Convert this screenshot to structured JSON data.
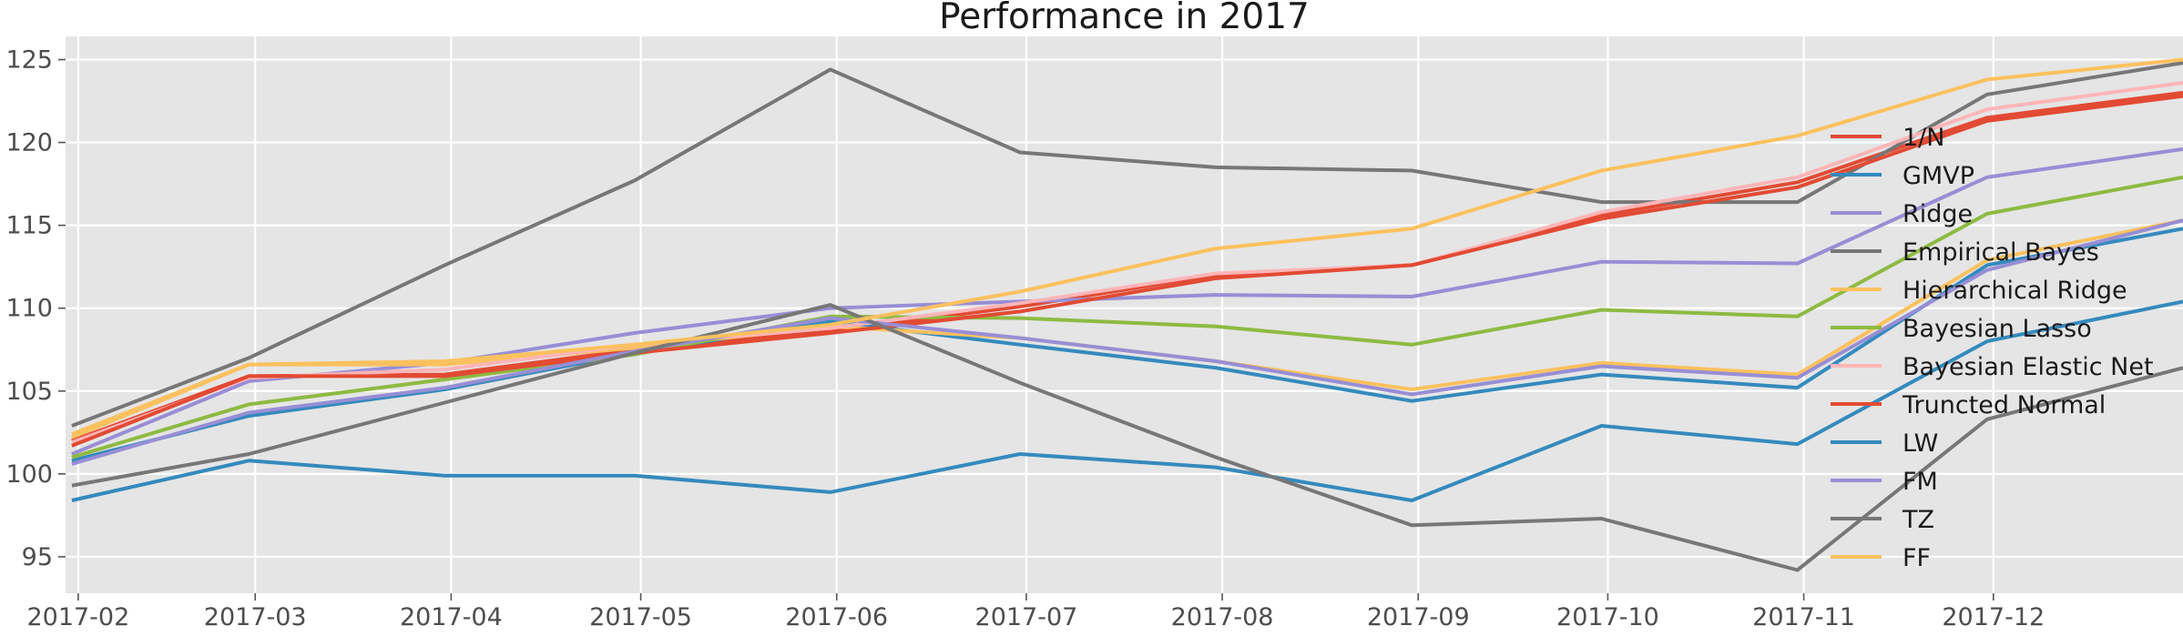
{
  "chart_data": {
    "type": "line",
    "title": "Performance in 2017",
    "xlabel": "",
    "ylabel": "",
    "x": [
      "2017-01-31",
      "2017-02-28",
      "2017-03-31",
      "2017-04-30",
      "2017-05-31",
      "2017-06-30",
      "2017-07-31",
      "2017-08-31",
      "2017-09-30",
      "2017-10-31",
      "2017-11-30",
      "2017-12-31"
    ],
    "x_ticks": [
      "2017-02",
      "2017-03",
      "2017-04",
      "2017-05",
      "2017-06",
      "2017-07",
      "2017-08",
      "2017-09",
      "2017-10",
      "2017-11",
      "2017-12"
    ],
    "xlim": [
      "2017-01-30",
      "2017-12-31"
    ],
    "ylim": [
      92.8,
      126.4
    ],
    "y_ticks": [
      95,
      100,
      105,
      110,
      115,
      120,
      125
    ],
    "grid": true,
    "background": "#e5e5e5",
    "legend_position": "right",
    "series": [
      {
        "name": "1/N",
        "color": "#e24a33",
        "values": [
          102.0,
          105.9,
          106.0,
          107.5,
          108.6,
          110.1,
          112.0,
          112.6,
          115.6,
          117.6,
          121.5,
          123.0
        ]
      },
      {
        "name": "GMVP",
        "color": "#348abd",
        "values": [
          100.8,
          103.5,
          105.1,
          107.3,
          109.2,
          107.8,
          106.4,
          104.4,
          106.0,
          105.2,
          112.6,
          114.8
        ]
      },
      {
        "name": "Ridge",
        "color": "#988ed5",
        "values": [
          101.2,
          105.6,
          106.7,
          108.5,
          110.0,
          110.4,
          110.8,
          110.7,
          112.8,
          112.7,
          117.9,
          119.6
        ]
      },
      {
        "name": "Empirical Bayes",
        "color": "#777777",
        "values": [
          102.9,
          107.0,
          112.6,
          117.7,
          124.4,
          119.4,
          118.5,
          118.3,
          116.4,
          116.4,
          122.9,
          124.8
        ]
      },
      {
        "name": "Hierarchical Ridge",
        "color": "#fbc15e",
        "values": [
          102.4,
          106.6,
          106.6,
          107.6,
          108.9,
          108.2,
          106.8,
          105.1,
          106.7,
          106.0,
          112.9,
          115.3
        ]
      },
      {
        "name": "Bayesian Lasso",
        "color": "#8eba42",
        "values": [
          101.0,
          104.2,
          105.7,
          107.2,
          109.5,
          109.4,
          108.9,
          107.8,
          109.9,
          109.5,
          115.7,
          117.9
        ]
      },
      {
        "name": "Bayesian Elastic Net",
        "color": "#ffb5b8",
        "values": [
          101.9,
          105.8,
          106.3,
          107.8,
          108.8,
          110.3,
          112.1,
          112.6,
          115.8,
          117.9,
          122.0,
          123.6
        ]
      },
      {
        "name": "Truncted Normal",
        "color": "#e24a33",
        "values": [
          101.7,
          105.9,
          105.9,
          107.3,
          108.5,
          109.8,
          111.8,
          112.6,
          115.4,
          117.3,
          121.3,
          122.8
        ]
      },
      {
        "name": "LW",
        "color": "#348abd",
        "values": [
          98.4,
          100.8,
          99.9,
          99.9,
          98.9,
          101.2,
          100.4,
          98.4,
          102.9,
          101.8,
          108.0,
          110.4
        ]
      },
      {
        "name": "FM",
        "color": "#988ed5",
        "values": [
          100.6,
          103.7,
          105.2,
          107.4,
          109.4,
          108.2,
          106.8,
          104.8,
          106.5,
          105.8,
          112.3,
          115.3
        ]
      },
      {
        "name": "TZ",
        "color": "#777777",
        "values": [
          99.3,
          101.2,
          104.3,
          107.3,
          110.2,
          105.5,
          101.0,
          96.9,
          97.3,
          94.2,
          103.3,
          106.4
        ]
      },
      {
        "name": "FF",
        "color": "#fbc15e",
        "values": [
          102.2,
          106.6,
          106.8,
          107.8,
          109.0,
          111.0,
          113.6,
          114.8,
          118.3,
          120.4,
          123.8,
          125.0
        ]
      }
    ]
  }
}
